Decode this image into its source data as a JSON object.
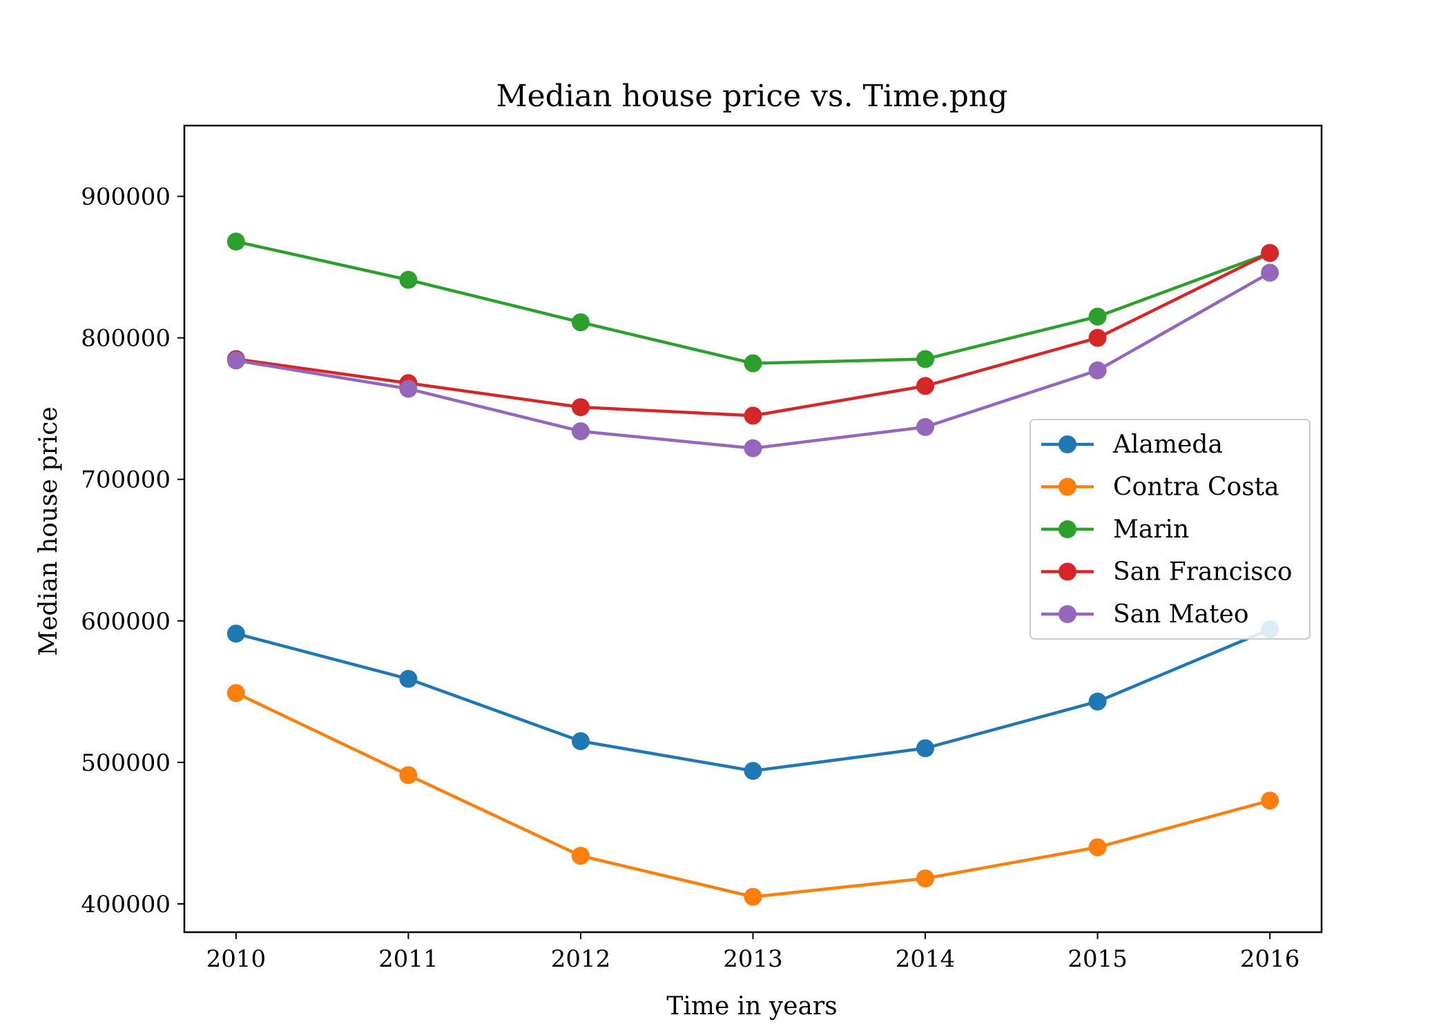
{
  "chart_data": {
    "type": "line",
    "title": "Median house price vs. Time.png",
    "xlabel": "Time in years",
    "ylabel": "Median house price",
    "x": [
      2010,
      2011,
      2012,
      2013,
      2014,
      2015,
      2016
    ],
    "xlim": [
      2009.7,
      2016.3
    ],
    "ylim": [
      380000,
      950000
    ],
    "xticks": [
      2010,
      2011,
      2012,
      2013,
      2014,
      2015,
      2016
    ],
    "yticks": [
      400000,
      500000,
      600000,
      700000,
      800000,
      900000
    ],
    "grid": false,
    "legend_position": "center-right",
    "series": [
      {
        "name": "Alameda",
        "color": "#1f77b4",
        "values": [
          591000,
          559000,
          515000,
          494000,
          510000,
          543000,
          594000
        ]
      },
      {
        "name": "Contra Costa",
        "color": "#ff7f0e",
        "values": [
          549000,
          491000,
          434000,
          405000,
          418000,
          440000,
          473000
        ]
      },
      {
        "name": "Marin",
        "color": "#2ca02c",
        "values": [
          868000,
          841000,
          811000,
          782000,
          785000,
          815000,
          860000
        ]
      },
      {
        "name": "San Francisco",
        "color": "#d62728",
        "values": [
          785000,
          768000,
          751000,
          745000,
          766000,
          800000,
          860000
        ]
      },
      {
        "name": "San Mateo",
        "color": "#9467bd",
        "values": [
          784000,
          764000,
          734000,
          722000,
          737000,
          777000,
          846000
        ]
      }
    ]
  }
}
